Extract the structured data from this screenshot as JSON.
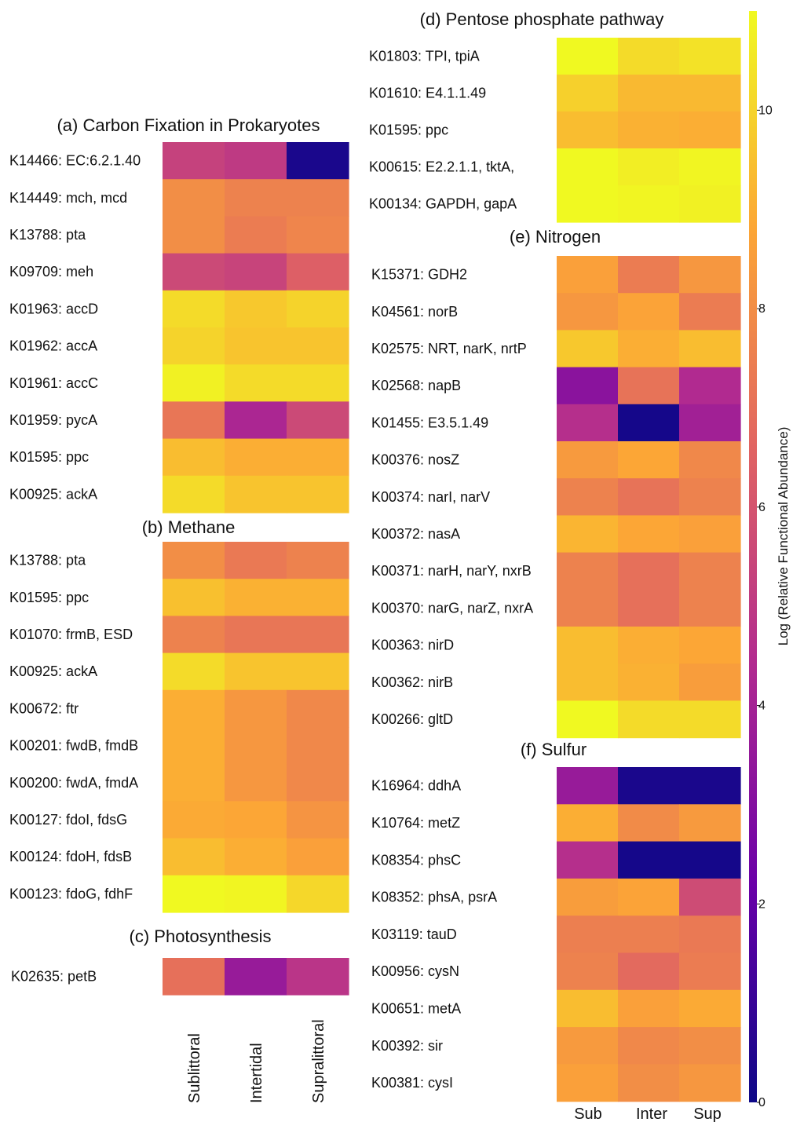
{
  "figure": {
    "colorbar": {
      "label": "Log (Relative Functional Abundance)",
      "range": [
        0,
        11
      ],
      "ticks": [
        "0",
        "2",
        "4",
        "6",
        "8",
        "10"
      ],
      "colormap": [
        "#0d0887",
        "#6a00a8",
        "#b12a90",
        "#e16462",
        "#fca636",
        "#f0f921"
      ]
    },
    "column_labels_rotated": [
      "Sublittoral",
      "Intertidal",
      "Supralittoral"
    ],
    "column_labels_short": [
      "Sub",
      "Inter",
      "Sup"
    ]
  },
  "chart_data": [
    {
      "type": "heatmap",
      "title": "(a) Carbon Fixation in Prokaryotes",
      "columns": [
        "Sublittoral",
        "Intertidal",
        "Supralittoral"
      ],
      "rows": [
        "K14466: EC:6.2.1.40",
        "K14449: mch, mcd",
        "K13788: pta",
        "K09709: meh",
        "K01963: accD",
        "K01962: accA",
        "K01961: accC",
        "K01959: pycA",
        "K01595: ppc",
        "K00925: ackA"
      ],
      "values": [
        [
          5.3,
          5.0,
          0.3
        ],
        [
          8.0,
          7.6,
          7.6
        ],
        [
          8.0,
          7.4,
          7.7
        ],
        [
          5.6,
          5.4,
          6.4
        ],
        [
          10.2,
          9.7,
          10.0
        ],
        [
          10.0,
          9.6,
          9.6
        ],
        [
          10.8,
          10.2,
          10.2
        ],
        [
          7.2,
          4.2,
          5.6
        ],
        [
          9.4,
          9.0,
          9.0
        ],
        [
          10.2,
          9.6,
          9.6
        ]
      ]
    },
    {
      "type": "heatmap",
      "title": "(b) Methane",
      "columns": [
        "Sublittoral",
        "Intertidal",
        "Supralittoral"
      ],
      "rows": [
        "K13788: pta",
        "K01595: ppc",
        "K01070: frmB, ESD",
        "K00925: ackA",
        "K00672: ftr",
        "K00201: fwdB, fmdB",
        "K00200: fwdA, fmdA",
        "K00127: fdoI, fdsG",
        "K00124: fdoH, fdsB",
        "K00123: fdoG, fdhF"
      ],
      "values": [
        [
          8.0,
          7.3,
          7.6
        ],
        [
          9.5,
          9.1,
          9.1
        ],
        [
          7.6,
          7.2,
          7.2
        ],
        [
          10.2,
          9.6,
          9.6
        ],
        [
          9.0,
          8.3,
          7.8
        ],
        [
          9.0,
          8.3,
          7.8
        ],
        [
          9.0,
          8.3,
          7.8
        ],
        [
          8.9,
          8.8,
          8.2
        ],
        [
          9.4,
          9.0,
          8.6
        ],
        [
          11.0,
          10.9,
          10.1
        ]
      ]
    },
    {
      "type": "heatmap",
      "title": "(c) Photosynthesis",
      "columns": [
        "Sublittoral",
        "Intertidal",
        "Supralittoral"
      ],
      "rows": [
        "K02635: petB"
      ],
      "values": [
        [
          7.0,
          3.6,
          4.8
        ]
      ]
    },
    {
      "type": "heatmap",
      "title": "(d) Pentose phosphate pathway",
      "columns": [
        "Sub",
        "Inter",
        "Sup"
      ],
      "rows": [
        "K01803: TPI, tpiA",
        "K01610: E4.1.1.49",
        "K01595: ppc",
        "K00615: E2.2.1.1, tktA,",
        "K00134: GAPDH, gapA"
      ],
      "values": [
        [
          11.0,
          10.2,
          10.4
        ],
        [
          9.9,
          9.3,
          9.3
        ],
        [
          9.4,
          9.1,
          9.0
        ],
        [
          11.2,
          10.7,
          10.9
        ],
        [
          11.2,
          10.9,
          10.8
        ]
      ]
    },
    {
      "type": "heatmap",
      "title": "(e) Nitrogen",
      "columns": [
        "Sub",
        "Inter",
        "Sup"
      ],
      "rows": [
        "K15371: GDH2",
        "K04561: norB",
        "K02575: NRT, narK, nrtP",
        "K02568: napB",
        "K01455: E3.5.1.49",
        "K00376: nosZ",
        "K00374: narI, narV",
        "K00372: nasA",
        "K00371: narH, narY, nxrB",
        "K00370: narG, narZ, nxrA",
        "K00363: nirD",
        "K00362: nirB",
        "K00266: gltD"
      ],
      "values": [
        [
          8.6,
          7.4,
          8.3
        ],
        [
          8.3,
          8.7,
          7.4
        ],
        [
          9.7,
          9.0,
          9.4
        ],
        [
          3.2,
          7.1,
          4.4
        ],
        [
          4.6,
          0.2,
          3.9
        ],
        [
          8.4,
          8.8,
          7.8
        ],
        [
          7.6,
          7.1,
          7.6
        ],
        [
          9.2,
          8.8,
          8.6
        ],
        [
          7.6,
          7.0,
          7.6
        ],
        [
          7.6,
          7.0,
          7.6
        ],
        [
          9.4,
          9.0,
          8.8
        ],
        [
          9.4,
          9.1,
          8.5
        ],
        [
          11.2,
          10.2,
          10.2
        ]
      ]
    },
    {
      "type": "heatmap",
      "title": "(f) Sulfur",
      "columns": [
        "Sub",
        "Inter",
        "Sup"
      ],
      "rows": [
        "K16964: ddhA",
        "K10764: metZ",
        "K08354: phsC",
        "K08352: phsA, psrA",
        "K03119: tauD",
        "K00956: cysN",
        "K00651: metA",
        "K00392: sir",
        "K00381: cysI"
      ],
      "values": [
        [
          3.6,
          0.3,
          0.3
        ],
        [
          9.0,
          7.9,
          8.4
        ],
        [
          4.6,
          0.2,
          0.2
        ],
        [
          8.5,
          8.7,
          5.7
        ],
        [
          7.5,
          7.5,
          7.3
        ],
        [
          7.6,
          6.8,
          7.4
        ],
        [
          9.4,
          8.6,
          8.9
        ],
        [
          8.4,
          7.8,
          8.0
        ],
        [
          8.6,
          8.0,
          8.3
        ]
      ]
    }
  ]
}
